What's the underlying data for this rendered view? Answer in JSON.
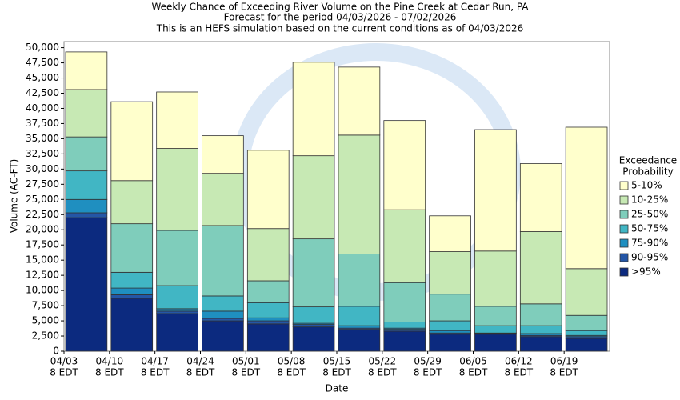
{
  "chart_data": {
    "type": "stacked_bar",
    "title": "Weekly Chance of Exceeding River Volume on the Pine Creek at Cedar Run, PA",
    "subtitle": [
      "Forecast for the period 04/03/2026 - 07/02/2026",
      "This is an HEFS simulation based on the current conditions as of 04/03/2026"
    ],
    "y_label": "Volume (AC-FT)",
    "x_label": "Date",
    "categories": [
      "04/03",
      "04/10",
      "04/17",
      "04/24",
      "05/01",
      "05/08",
      "05/15",
      "05/22",
      "05/29",
      "06/05",
      "06/12",
      "06/19"
    ],
    "time_label": "8 EDT",
    "legend_title": [
      "Exceedance",
      "Probability"
    ],
    "legend_position": "right",
    "grid": false,
    "ylim": [
      0,
      51000
    ],
    "yticks": [
      0,
      {
        "value": 2500,
        "label": "2,500"
      },
      {
        "value": 5000,
        "label": "5,000"
      },
      {
        "value": 7500,
        "label": "7,500"
      },
      {
        "value": 10000,
        "label": "10,000"
      },
      {
        "value": 12500,
        "label": "12,500"
      },
      {
        "value": 15000,
        "label": "15,000"
      },
      {
        "value": 17500,
        "label": "17,500"
      },
      {
        "value": 20000,
        "label": "20,000"
      },
      {
        "value": 22500,
        "label": "22,500"
      },
      {
        "value": 25000,
        "label": "25,000"
      },
      {
        "value": 27500,
        "label": "27,500"
      },
      {
        "value": 30000,
        "label": "30,000"
      },
      {
        "value": 32500,
        "label": "32,500"
      },
      {
        "value": 35000,
        "label": "35,000"
      },
      {
        "value": 37500,
        "label": "37,500"
      },
      {
        "value": 40000,
        "label": "40,000"
      },
      {
        "value": 42500,
        "label": "42,500"
      },
      {
        "value": 45000,
        "label": "45,000"
      },
      {
        "value": 47500,
        "label": "47,500"
      },
      {
        "value": 50000,
        "label": "50,000"
      }
    ],
    "series": [
      {
        "name": ">95%",
        "color": "#0c2a7f",
        "values": [
          22000,
          8700,
          6200,
          5000,
          4500,
          4000,
          3600,
          3300,
          2800,
          2800,
          2400,
          2100
        ]
      },
      {
        "name": "90-95%",
        "color": "#2456a6",
        "values": [
          800,
          600,
          400,
          400,
          500,
          400,
          200,
          300,
          200,
          100,
          200,
          300
        ]
      },
      {
        "name": "75-90%",
        "color": "#1f8fc0",
        "values": [
          2200,
          1100,
          400,
          1200,
          500,
          200,
          400,
          200,
          400,
          100,
          300,
          200
        ]
      },
      {
        "name": "50-75%",
        "color": "#41b6c4",
        "values": [
          4700,
          2600,
          3800,
          2500,
          2500,
          2700,
          3200,
          1000,
          1600,
          1200,
          1300,
          800
        ]
      },
      {
        "name": "25-50%",
        "color": "#7fcdbb",
        "values": [
          5600,
          8000,
          9100,
          11600,
          3600,
          11200,
          8600,
          6500,
          4400,
          3200,
          3600,
          2500
        ]
      },
      {
        "name": "10-25%",
        "color": "#c7e9b4",
        "values": [
          7800,
          7100,
          13500,
          8600,
          8600,
          13700,
          19600,
          12000,
          7000,
          9100,
          11900,
          7700
        ]
      },
      {
        "name": "5-10%",
        "color": "#ffffcc",
        "values": [
          6200,
          13000,
          9300,
          6200,
          12900,
          15400,
          11200,
          14700,
          5900,
          20000,
          11200,
          23300
        ]
      }
    ]
  }
}
